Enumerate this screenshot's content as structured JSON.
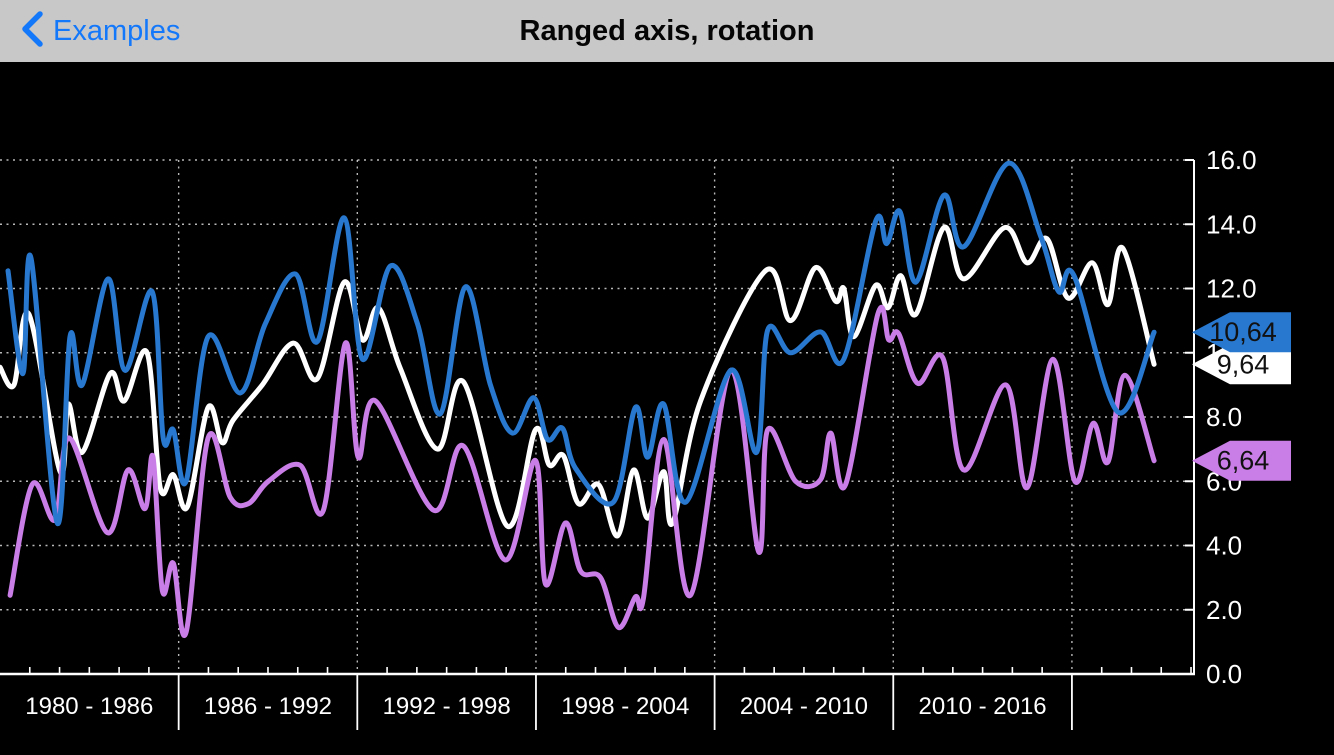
{
  "nav": {
    "back_label": "Examples",
    "title": "Ranged axis, rotation",
    "accent_color": "#1478fa",
    "bar_color": "#c8c8c9",
    "title_color": "#050505"
  },
  "chart_data": {
    "type": "line",
    "background": "#000000",
    "grid": {
      "show": true,
      "color": "#ffffff",
      "opacity": 0.72,
      "style": "dotted"
    },
    "axis_color": "#ffffff",
    "label_color": "#ffffff",
    "y_axis": {
      "position": "right",
      "min": 0,
      "max": 16,
      "tick_step": 2,
      "ticks": [
        {
          "value": 16,
          "label": "16.0"
        },
        {
          "value": 14,
          "label": "14.0"
        },
        {
          "value": 12,
          "label": "12.0"
        },
        {
          "value": 10,
          "label": "10.0"
        },
        {
          "value": 8,
          "label": "8.0"
        },
        {
          "value": 6,
          "label": "6.0"
        },
        {
          "value": 4,
          "label": "4.0"
        },
        {
          "value": 2,
          "label": "2.0"
        },
        {
          "value": 0,
          "label": "0.0"
        }
      ]
    },
    "x_axis": {
      "min_year": 1980,
      "max_year": 2020.1,
      "boundary_years": [
        1986,
        1992,
        1998,
        2004,
        2010,
        2016
      ],
      "minor_tick_step_years": 1,
      "range_labels": [
        {
          "label": "1980 - 1986",
          "center_year": 1983
        },
        {
          "label": "1986 - 1992",
          "center_year": 1989
        },
        {
          "label": "1992 - 1998",
          "center_year": 1995
        },
        {
          "label": "1998 - 2004",
          "center_year": 2001
        },
        {
          "label": "2004 - 2010",
          "center_year": 2007
        },
        {
          "label": "2010 - 2016",
          "center_year": 2013
        }
      ]
    },
    "axis_markers": [
      {
        "series": "white",
        "label": "9,64",
        "value": 9.64,
        "color": "#ffffff",
        "text_color": "#111111"
      },
      {
        "series": "blue",
        "label": "10,64",
        "value": 10.64,
        "color": "#2878cf",
        "text_color": "#111111"
      },
      {
        "series": "violet",
        "label": "6,64",
        "value": 6.64,
        "color": "#c97de6",
        "text_color": "#111111"
      }
    ],
    "series": [
      {
        "name": "white",
        "color": "#ffffff",
        "last_value": 9.64,
        "points": [
          [
            1980.0,
            9.55
          ],
          [
            1980.47,
            9.0
          ],
          [
            1980.97,
            11.2
          ],
          [
            1982.02,
            6.3
          ],
          [
            1982.29,
            8.4
          ],
          [
            1982.76,
            6.9
          ],
          [
            1983.7,
            9.35
          ],
          [
            1984.17,
            8.5
          ],
          [
            1984.94,
            10.0
          ],
          [
            1985.38,
            5.8
          ],
          [
            1985.82,
            6.2
          ],
          [
            1986.29,
            5.2
          ],
          [
            1986.99,
            8.3
          ],
          [
            1987.46,
            7.2
          ],
          [
            1987.83,
            7.9
          ],
          [
            1988.81,
            9.0
          ],
          [
            1989.85,
            10.3
          ],
          [
            1990.66,
            9.2
          ],
          [
            1991.56,
            12.2
          ],
          [
            1992.17,
            10.4
          ],
          [
            1992.71,
            11.4
          ],
          [
            1993.45,
            9.5
          ],
          [
            1994.69,
            7.0
          ],
          [
            1995.56,
            9.1
          ],
          [
            1997.04,
            4.6
          ],
          [
            1997.98,
            7.6
          ],
          [
            1998.45,
            6.5
          ],
          [
            1998.92,
            6.8
          ],
          [
            1999.43,
            5.3
          ],
          [
            2000.1,
            5.9
          ],
          [
            2000.74,
            4.3
          ],
          [
            2001.28,
            6.35
          ],
          [
            2001.75,
            4.85
          ],
          [
            2002.29,
            6.3
          ],
          [
            2002.59,
            4.7
          ],
          [
            2003.53,
            8.5
          ],
          [
            2005.71,
            12.55
          ],
          [
            2006.55,
            11.0
          ],
          [
            2007.39,
            12.65
          ],
          [
            2008.07,
            11.6
          ],
          [
            2008.34,
            12.0
          ],
          [
            2008.67,
            10.5
          ],
          [
            2009.41,
            12.1
          ],
          [
            2009.82,
            11.4
          ],
          [
            2010.25,
            12.4
          ],
          [
            2010.76,
            11.2
          ],
          [
            2011.7,
            13.9
          ],
          [
            2012.37,
            12.3
          ],
          [
            2013.75,
            13.9
          ],
          [
            2014.49,
            12.8
          ],
          [
            2015.16,
            13.55
          ],
          [
            2015.87,
            11.7
          ],
          [
            2016.68,
            12.8
          ],
          [
            2017.21,
            11.5
          ],
          [
            2017.71,
            13.25
          ],
          [
            2018.76,
            9.64
          ]
        ]
      },
      {
        "name": "violet",
        "color": "#c97de6",
        "last_value": 6.64,
        "points": [
          [
            1980.34,
            2.45
          ],
          [
            1981.08,
            5.9
          ],
          [
            1981.85,
            4.8
          ],
          [
            1982.32,
            7.35
          ],
          [
            1983.6,
            4.4
          ],
          [
            1984.3,
            6.35
          ],
          [
            1984.87,
            5.15
          ],
          [
            1985.14,
            6.75
          ],
          [
            1985.45,
            2.6
          ],
          [
            1985.82,
            3.45
          ],
          [
            1986.25,
            1.3
          ],
          [
            1986.99,
            7.35
          ],
          [
            1987.73,
            5.5
          ],
          [
            1988.34,
            5.3
          ],
          [
            1989.01,
            6.0
          ],
          [
            1990.08,
            6.5
          ],
          [
            1990.86,
            5.1
          ],
          [
            1991.6,
            10.3
          ],
          [
            1992.03,
            6.75
          ],
          [
            1992.61,
            8.5
          ],
          [
            1994.56,
            5.1
          ],
          [
            1995.56,
            7.1
          ],
          [
            1996.97,
            3.55
          ],
          [
            1997.98,
            6.65
          ],
          [
            1998.32,
            2.8
          ],
          [
            1998.99,
            4.7
          ],
          [
            1999.5,
            3.2
          ],
          [
            2000.17,
            3.0
          ],
          [
            2000.77,
            1.45
          ],
          [
            2001.34,
            2.4
          ],
          [
            2001.61,
            2.35
          ],
          [
            2002.29,
            7.3
          ],
          [
            2003.19,
            2.45
          ],
          [
            2004.54,
            9.45
          ],
          [
            2005.48,
            3.8
          ],
          [
            2005.78,
            7.6
          ],
          [
            2006.72,
            6.0
          ],
          [
            2007.56,
            6.05
          ],
          [
            2007.9,
            7.5
          ],
          [
            2008.4,
            5.9
          ],
          [
            2009.48,
            11.2
          ],
          [
            2009.85,
            10.4
          ],
          [
            2010.18,
            10.6
          ],
          [
            2010.82,
            9.05
          ],
          [
            2011.66,
            9.85
          ],
          [
            2012.37,
            6.35
          ],
          [
            2013.78,
            9.0
          ],
          [
            2014.49,
            5.8
          ],
          [
            2015.36,
            9.8
          ],
          [
            2016.1,
            6.0
          ],
          [
            2016.71,
            7.8
          ],
          [
            2017.21,
            6.6
          ],
          [
            2017.78,
            9.3
          ],
          [
            2018.76,
            6.64
          ]
        ]
      },
      {
        "name": "blue",
        "color": "#2878cf",
        "last_value": 10.64,
        "points": [
          [
            1980.27,
            12.55
          ],
          [
            1980.77,
            9.35
          ],
          [
            1981.04,
            12.95
          ],
          [
            1981.92,
            4.7
          ],
          [
            1982.35,
            10.5
          ],
          [
            1982.76,
            9.0
          ],
          [
            1983.63,
            12.3
          ],
          [
            1984.2,
            9.45
          ],
          [
            1985.11,
            11.9
          ],
          [
            1985.48,
            7.35
          ],
          [
            1985.82,
            7.6
          ],
          [
            1986.25,
            6.0
          ],
          [
            1986.99,
            10.5
          ],
          [
            1988.07,
            8.75
          ],
          [
            1988.91,
            10.9
          ],
          [
            1989.92,
            12.45
          ],
          [
            1990.66,
            10.35
          ],
          [
            1991.56,
            14.2
          ],
          [
            1992.17,
            9.8
          ],
          [
            1993.11,
            12.7
          ],
          [
            1994.02,
            10.9
          ],
          [
            1994.79,
            8.1
          ],
          [
            1995.63,
            12.05
          ],
          [
            1996.47,
            9.0
          ],
          [
            1997.21,
            7.5
          ],
          [
            1997.92,
            8.6
          ],
          [
            1998.39,
            7.3
          ],
          [
            1998.89,
            7.65
          ],
          [
            1999.33,
            6.4
          ],
          [
            2000.6,
            5.35
          ],
          [
            2001.34,
            8.3
          ],
          [
            2001.75,
            6.75
          ],
          [
            2002.29,
            8.4
          ],
          [
            2003.03,
            5.35
          ],
          [
            2004.54,
            9.45
          ],
          [
            2005.41,
            6.9
          ],
          [
            2005.78,
            10.7
          ],
          [
            2006.55,
            10.0
          ],
          [
            2007.56,
            10.65
          ],
          [
            2008.34,
            9.8
          ],
          [
            2009.41,
            14.1
          ],
          [
            2009.78,
            13.4
          ],
          [
            2010.22,
            14.4
          ],
          [
            2010.76,
            12.2
          ],
          [
            2011.7,
            14.9
          ],
          [
            2012.37,
            13.3
          ],
          [
            2013.88,
            15.9
          ],
          [
            2014.96,
            13.6
          ],
          [
            2015.56,
            11.9
          ],
          [
            2016.07,
            12.4
          ],
          [
            2017.55,
            8.15
          ],
          [
            2018.76,
            10.64
          ]
        ]
      }
    ]
  }
}
